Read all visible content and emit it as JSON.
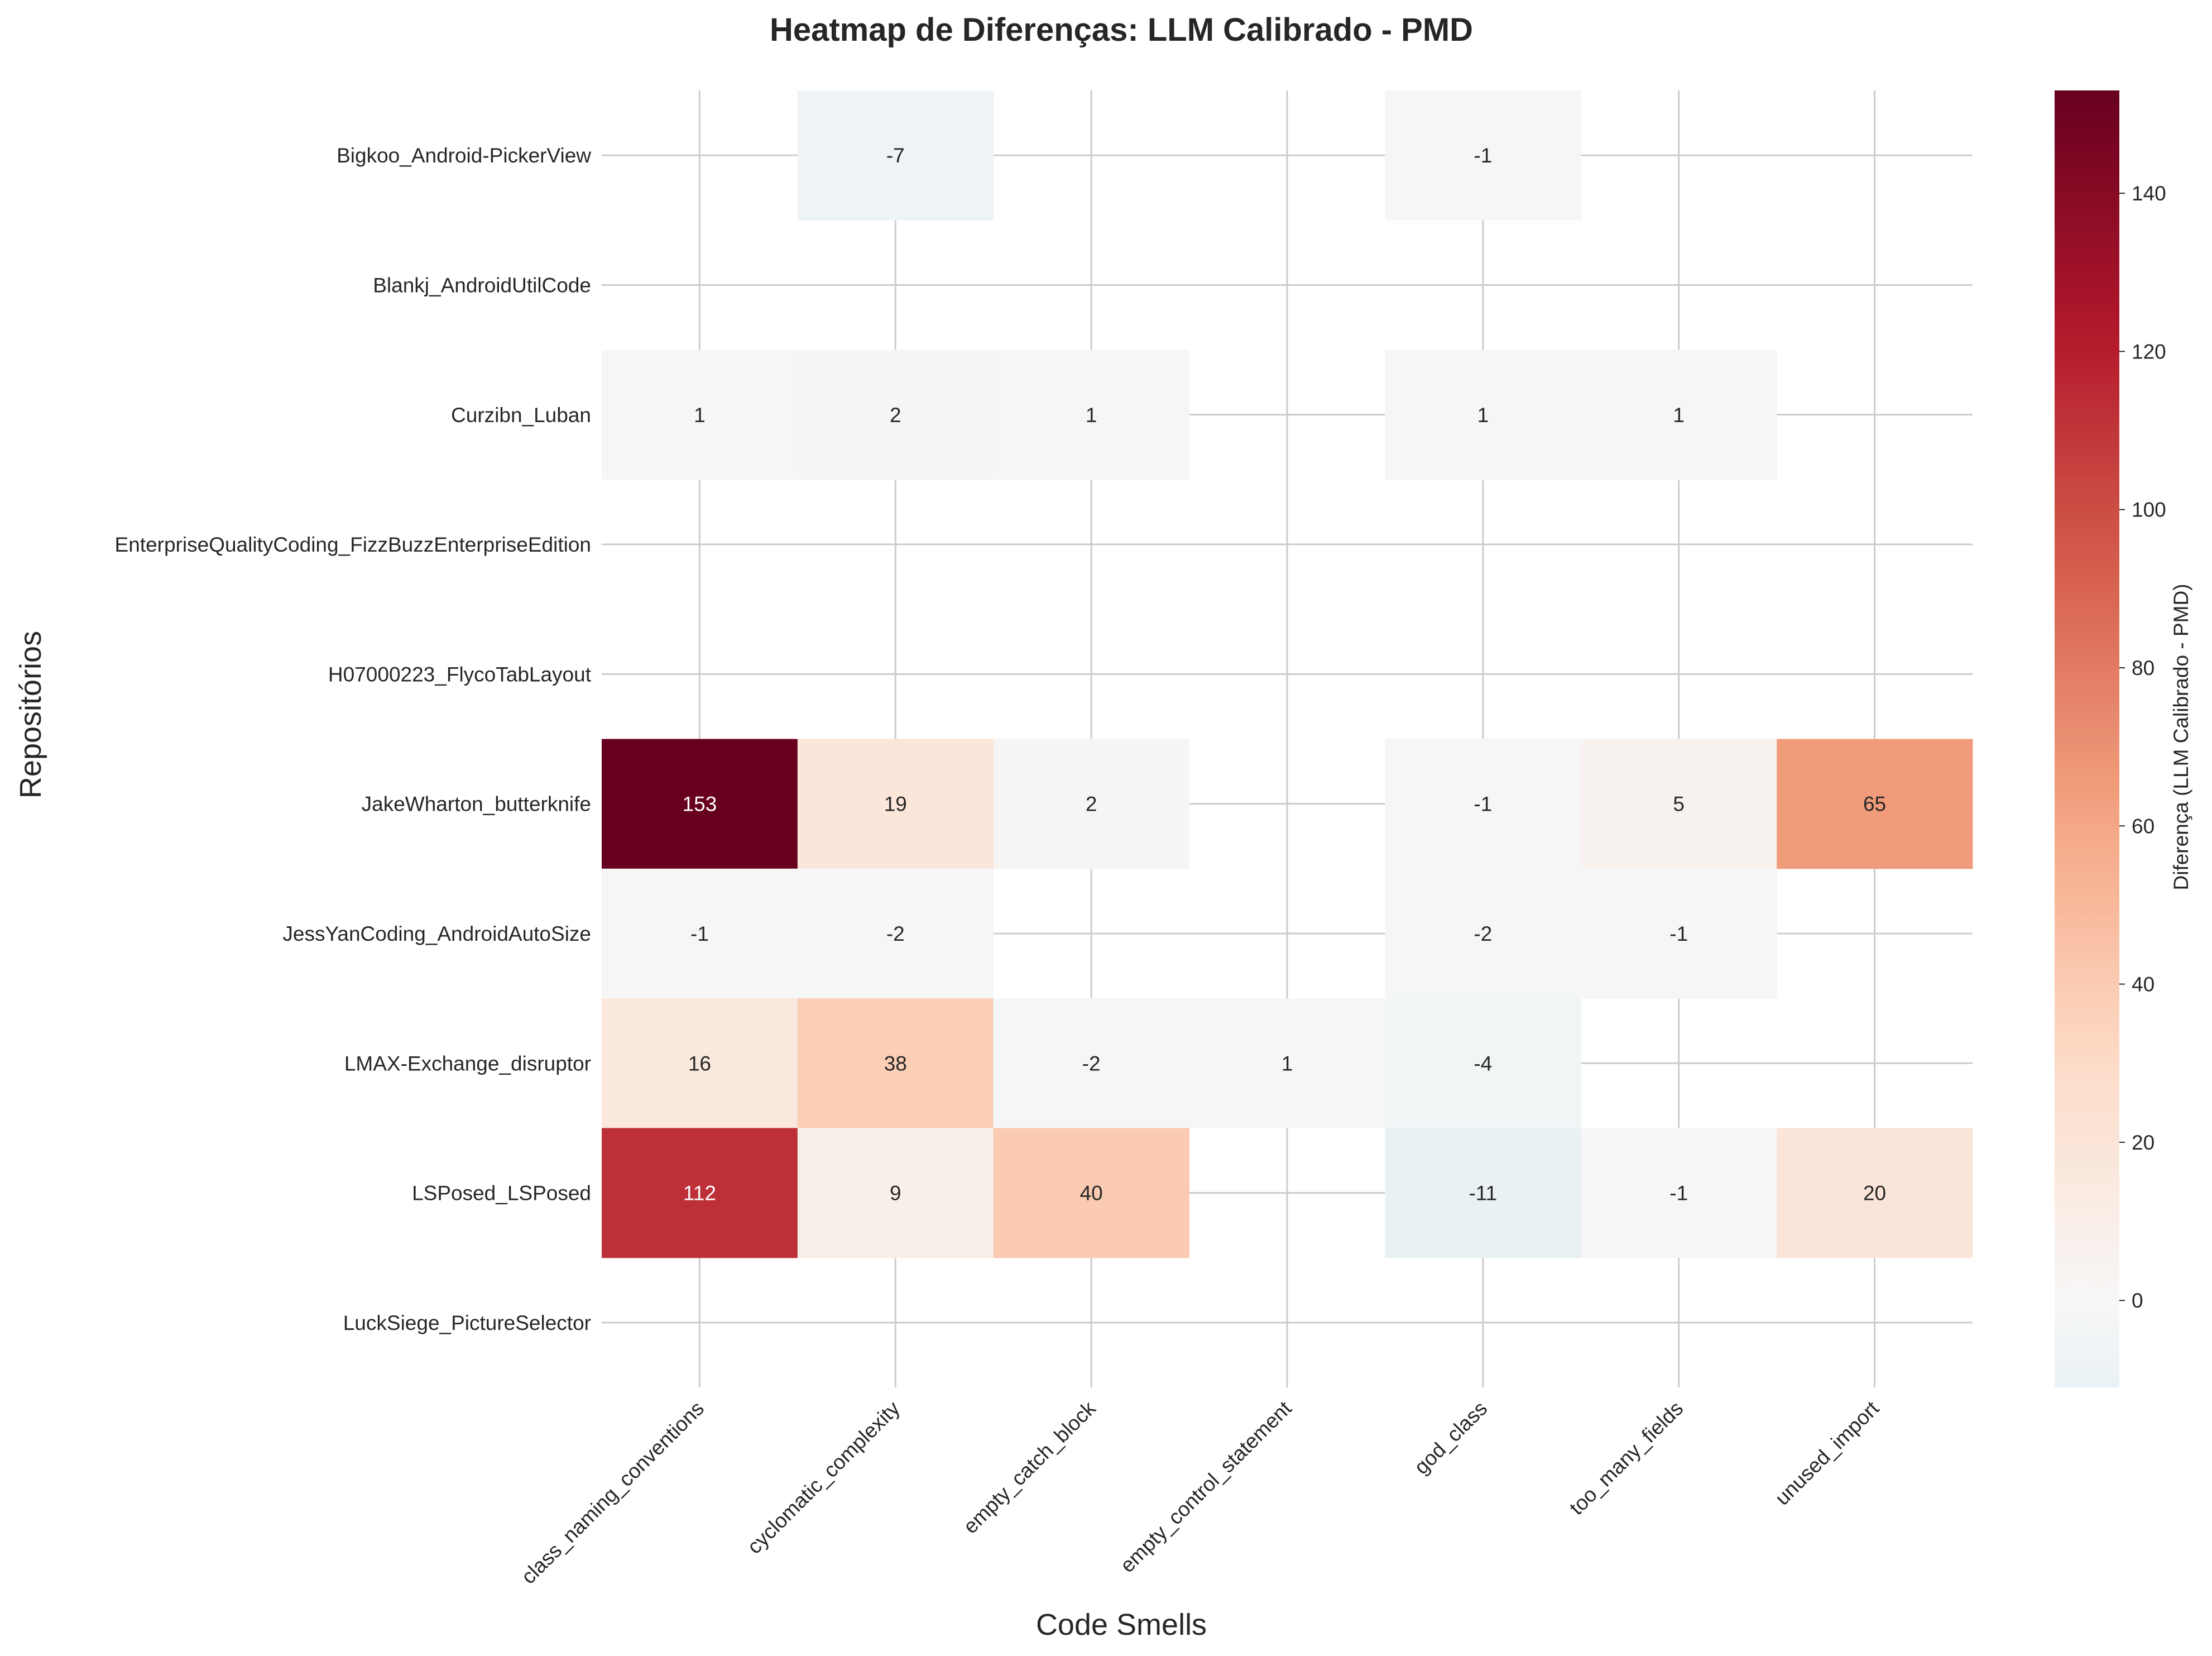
{
  "chart_data": {
    "type": "heatmap",
    "title": "Heatmap de Diferenças: LLM Calibrado - PMD",
    "xlabel": "Code Smells",
    "ylabel": "Repositórios",
    "colorbar_label": "Diferença (LLM Calibrado - PMD)",
    "colormap": "RdBu_r",
    "vmin": -11,
    "vmax": 153,
    "colorbar_ticks": [
      0,
      20,
      40,
      60,
      80,
      100,
      120,
      140
    ],
    "grid": true,
    "x_categories": [
      "class_naming_conventions",
      "cyclomatic_complexity",
      "empty_catch_block",
      "empty_control_statement",
      "god_class",
      "too_many_fields",
      "unused_import"
    ],
    "y_categories": [
      "Bigkoo_Android-PickerView",
      "Blankj_AndroidUtilCode",
      "Curzibn_Luban",
      "EnterpriseQualityCoding_FizzBuzzEnterpriseEdition",
      "H07000223_FlycoTabLayout",
      "JakeWharton_butterknife",
      "JessYanCoding_AndroidAutoSize",
      "LMAX-Exchange_disruptor",
      "LSPosed_LSPosed",
      "LuckSiege_PictureSelector"
    ],
    "values": [
      [
        null,
        -7,
        null,
        null,
        -1,
        null,
        null
      ],
      [
        null,
        null,
        null,
        null,
        null,
        null,
        null
      ],
      [
        1,
        2,
        1,
        null,
        1,
        1,
        null
      ],
      [
        null,
        null,
        null,
        null,
        null,
        null,
        null
      ],
      [
        null,
        null,
        null,
        null,
        null,
        null,
        null
      ],
      [
        153,
        19,
        2,
        null,
        -1,
        5,
        65
      ],
      [
        -1,
        -2,
        null,
        null,
        -2,
        -1,
        null
      ],
      [
        16,
        38,
        -2,
        1,
        -4,
        null,
        null
      ],
      [
        112,
        9,
        40,
        null,
        -11,
        -1,
        20
      ],
      [
        null,
        null,
        null,
        null,
        null,
        null,
        null
      ]
    ]
  }
}
